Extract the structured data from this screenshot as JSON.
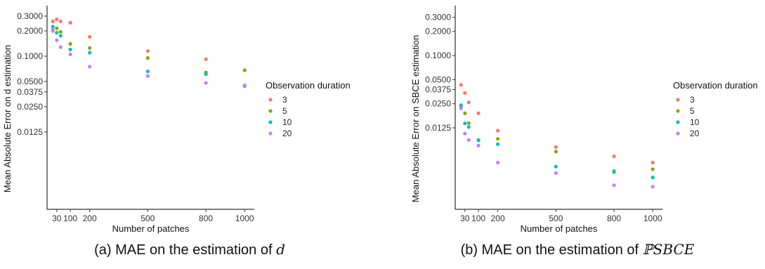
{
  "chart_data": [
    {
      "type": "scatter",
      "caption_text": "(a) MAE on the estimation of ",
      "caption_math": "d",
      "xlabel": "Number of patches",
      "ylabel": "Mean Absolute Error on d estimation",
      "y_scale": "log",
      "ylim": [
        0.0015,
        0.4
      ],
      "xlim": [
        -20,
        1050
      ],
      "x_ticks": [
        30,
        100,
        200,
        500,
        800,
        1000
      ],
      "x_tick_labels": [
        "30",
        "100",
        "200",
        "500",
        "800",
        "1000"
      ],
      "y_ticks": [
        0.0125,
        0.025,
        0.0375,
        0.05,
        0.1,
        0.2,
        0.3
      ],
      "y_tick_labels": [
        "0.0125",
        "0.0250",
        "0.0375",
        "0.0500",
        "0.1000",
        "0.2000",
        "0.3000"
      ],
      "legend": {
        "title": "Observation duration",
        "placement": "right"
      },
      "grid": false,
      "series": [
        {
          "name": "3",
          "color": "#F8766D",
          "x": [
            10,
            30,
            50,
            100,
            200,
            500,
            800,
            1000
          ],
          "y": [
            0.26,
            0.275,
            0.26,
            0.25,
            0.17,
            0.115,
            0.092,
            0.068
          ]
        },
        {
          "name": "5",
          "color": "#7CAE00",
          "x": [
            10,
            30,
            50,
            100,
            200,
            500,
            800,
            1000
          ],
          "y": [
            0.205,
            0.215,
            0.195,
            0.14,
            0.125,
            0.095,
            0.064,
            0.068
          ]
        },
        {
          "name": "10",
          "color": "#00BFC4",
          "x": [
            10,
            30,
            50,
            100,
            200,
            500,
            800,
            1000
          ],
          "y": [
            0.225,
            0.19,
            0.175,
            0.12,
            0.11,
            0.066,
            0.061,
            0.044
          ]
        },
        {
          "name": "20",
          "color": "#C77CFF",
          "x": [
            10,
            30,
            50,
            100,
            200,
            500,
            800,
            1000
          ],
          "y": [
            0.2,
            0.155,
            0.128,
            0.105,
            0.075,
            0.058,
            0.048,
            0.045
          ]
        }
      ]
    },
    {
      "type": "scatter",
      "caption_text": "(b) MAE on the estimation of ",
      "caption_math": "ℙSBCE",
      "xlabel": "Number of patches",
      "ylabel": "Mean Absolute Error on SBCE estimation",
      "y_scale": "log",
      "ylim": [
        0.0012,
        0.42
      ],
      "xlim": [
        -20,
        1050
      ],
      "x_ticks": [
        30,
        100,
        200,
        500,
        800,
        1000
      ],
      "x_tick_labels": [
        "30",
        "100",
        "200",
        "500",
        "800",
        "1000"
      ],
      "y_ticks": [
        0.0125,
        0.025,
        0.0375,
        0.05,
        0.1,
        0.2,
        0.3
      ],
      "y_tick_labels": [
        "0.0125",
        "0.0250",
        "0.0375",
        "0.0500",
        "0.1000",
        "0.2000",
        "0.3000"
      ],
      "legend": {
        "title": "Observation duration",
        "placement": "right"
      },
      "grid": false,
      "series": [
        {
          "name": "3",
          "color": "#F8766D",
          "x": [
            10,
            30,
            50,
            100,
            200,
            500,
            800,
            1000
          ],
          "y": [
            0.043,
            0.034,
            0.026,
            0.019,
            0.0115,
            0.0072,
            0.0055,
            0.0046
          ]
        },
        {
          "name": "5",
          "color": "#7CAE00",
          "x": [
            10,
            30,
            50,
            100,
            200,
            500,
            800,
            1000
          ],
          "y": [
            0.023,
            0.019,
            0.0143,
            0.0088,
            0.0091,
            0.0063,
            0.0036,
            0.0038
          ]
        },
        {
          "name": "10",
          "color": "#00BFC4",
          "x": [
            10,
            30,
            50,
            100,
            200,
            500,
            800,
            1000
          ],
          "y": [
            0.024,
            0.0142,
            0.0128,
            0.0087,
            0.0078,
            0.0041,
            0.0035,
            0.003
          ]
        },
        {
          "name": "20",
          "color": "#C77CFF",
          "x": [
            10,
            30,
            50,
            100,
            200,
            500,
            800,
            1000
          ],
          "y": [
            0.022,
            0.0106,
            0.0088,
            0.0075,
            0.0046,
            0.0034,
            0.0024,
            0.0023
          ]
        }
      ]
    }
  ]
}
